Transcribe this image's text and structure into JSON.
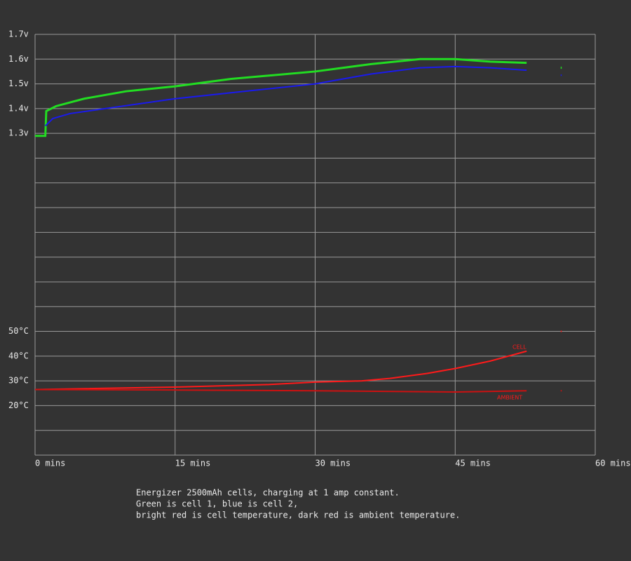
{
  "chart_data": {
    "type": "line",
    "xlim": [
      0,
      60
    ],
    "xticks": [
      {
        "value": 0,
        "label": "0 mins"
      },
      {
        "value": 15,
        "label": "15 mins"
      },
      {
        "value": 30,
        "label": "30 mins"
      },
      {
        "value": 45,
        "label": "45 mins"
      },
      {
        "value": 60,
        "label": "60 mins"
      }
    ],
    "ylim": [
      0,
      1.7
    ],
    "yticks": [
      {
        "value": 0.1,
        "label": null
      },
      {
        "value": 0.2,
        "label": null
      },
      {
        "value": 0.3,
        "label": null
      },
      {
        "value": 0.4,
        "label": null
      },
      {
        "value": 0.5,
        "label": null
      },
      {
        "value": 0.6,
        "label": null
      },
      {
        "value": 0.7,
        "label": null
      },
      {
        "value": 0.8,
        "label": null
      },
      {
        "value": 0.9,
        "label": null
      },
      {
        "value": 1.0,
        "label": null
      },
      {
        "value": 1.1,
        "label": null
      },
      {
        "value": 1.2,
        "label": null
      },
      {
        "value": 1.3,
        "label": "1.3v"
      },
      {
        "value": 1.4,
        "label": "1.4v"
      },
      {
        "value": 1.5,
        "label": "1.5v"
      },
      {
        "value": 1.6,
        "label": "1.6v"
      },
      {
        "value": 1.7,
        "label": "1.7v"
      }
    ],
    "y2lim": [
      0,
      170
    ],
    "y2ticks": [
      {
        "value": 20,
        "label": "20°C"
      },
      {
        "value": 30,
        "label": "30°C"
      },
      {
        "value": 40,
        "label": "40°C"
      },
      {
        "value": 50,
        "label": "50°C"
      }
    ],
    "grid": true,
    "series": [
      {
        "color": "#22dd22",
        "x": [
          0,
          1.1,
          1.2,
          2.25,
          5.25,
          9.75,
          15,
          21,
          30,
          36,
          41.25,
          45,
          48.75,
          52.65,
          54,
          56.3
        ],
        "values": [
          1.29,
          1.29,
          1.39,
          1.41,
          1.44,
          1.47,
          1.49,
          1.52,
          1.55,
          1.58,
          1.6,
          1.6,
          1.59,
          1.585,
          null,
          1.565
        ]
      },
      {
        "color": "#1a1aee",
        "x": [
          1.1,
          1.9,
          3.75,
          7.5,
          15,
          22.5,
          30,
          36,
          41.25,
          45,
          48.75,
          52.65,
          54,
          56.3
        ],
        "values": [
          1.33,
          1.36,
          1.38,
          1.4,
          1.44,
          1.47,
          1.5,
          1.54,
          1.565,
          1.57,
          1.565,
          1.555,
          null,
          1.535
        ]
      },
      {
        "name": "CELL",
        "color": "#ff1a1a",
        "axis": "y2",
        "x": [
          0,
          15,
          25,
          30,
          35,
          38,
          42,
          45,
          48.75,
          52.65,
          54,
          56.3
        ],
        "values": [
          26.5,
          27.5,
          28.5,
          29.5,
          30,
          31,
          33,
          35,
          38,
          42,
          null,
          50
        ]
      },
      {
        "name": "AMBIENT",
        "color": "#cc1111",
        "axis": "y2",
        "x": [
          0,
          15,
          30,
          45,
          52.65,
          54,
          56.3
        ],
        "values": [
          26.5,
          26.3,
          26,
          25.5,
          26,
          null,
          26
        ]
      }
    ],
    "caption": [
      "Energizer 2500mAh cells, charging at 1 amp constant.",
      "Green is cell 1, blue is cell 2,",
      "bright red is cell temperature, dark red is ambient temperature."
    ]
  }
}
